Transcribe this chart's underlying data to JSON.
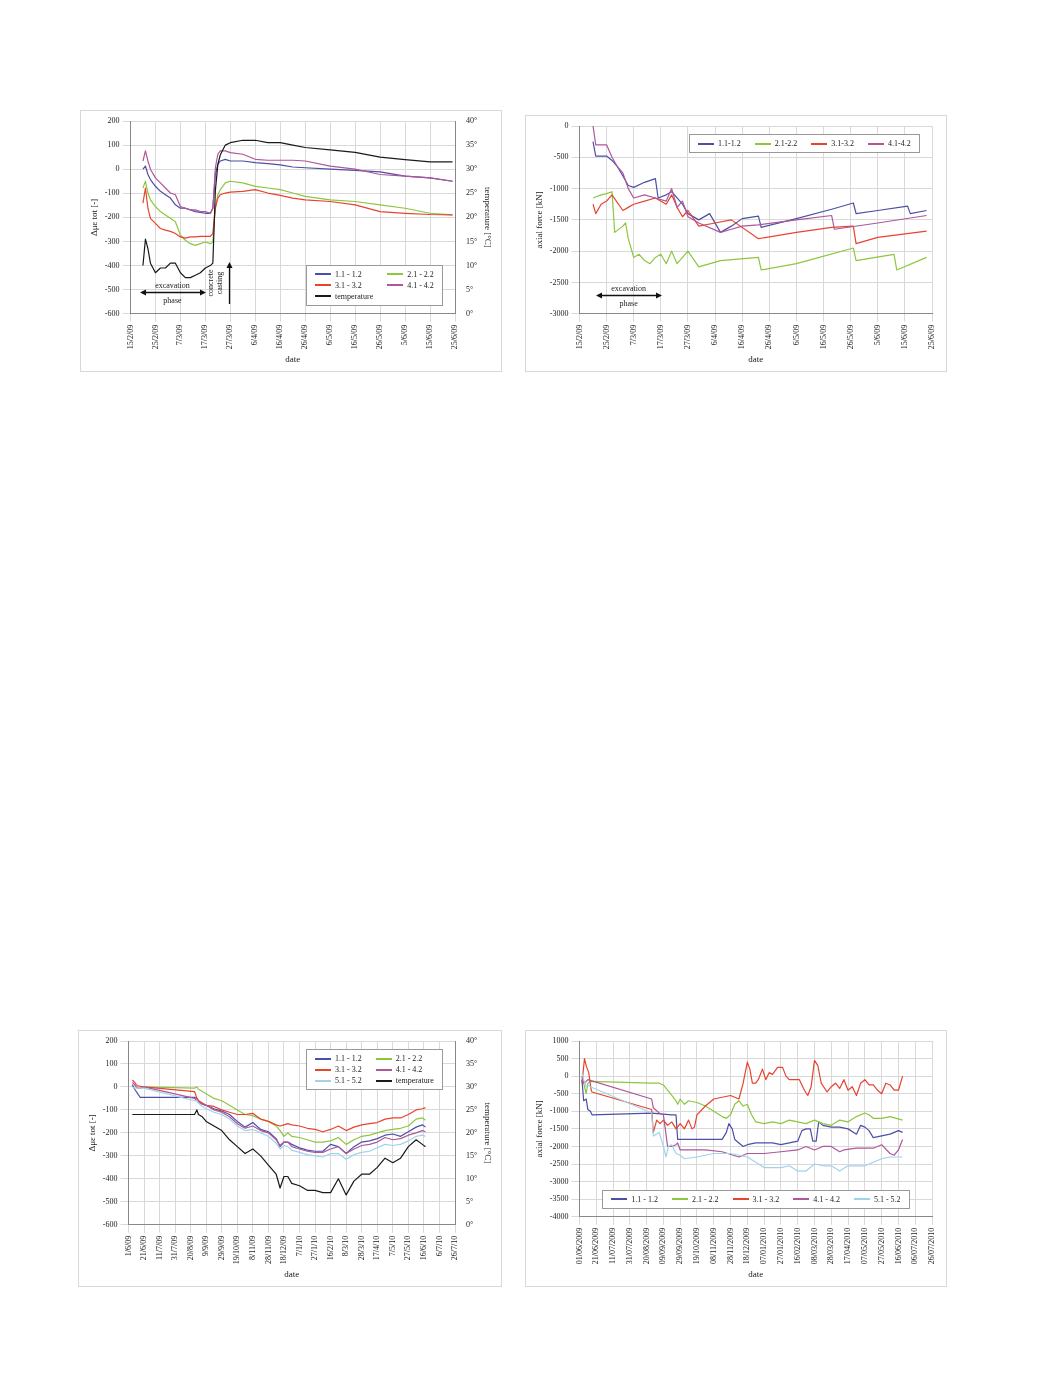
{
  "chart_data": [
    {
      "type": "line",
      "xlabel": "date",
      "ylabel": "Δμε tot [-]",
      "y2label": "temperature [°C]",
      "grid": true,
      "legend": "bottom right",
      "x": [
        "2009-02-20",
        "2009-02-21",
        "2009-02-22",
        "2009-02-23",
        "2009-02-25",
        "2009-02-27",
        "2009-03-01",
        "2009-03-03",
        "2009-03-05",
        "2009-03-07",
        "2009-03-09",
        "2009-03-11",
        "2009-03-13",
        "2009-03-15",
        "2009-03-17",
        "2009-03-19",
        "2009-03-20",
        "2009-03-21",
        "2009-03-22",
        "2009-03-23",
        "2009-03-25",
        "2009-03-27",
        "2009-04-01",
        "2009-04-06",
        "2009-04-11",
        "2009-04-16",
        "2009-04-21",
        "2009-04-26",
        "2009-05-06",
        "2009-05-16",
        "2009-05-26",
        "2009-06-05",
        "2009-06-15",
        "2009-06-24"
      ],
      "xlim": [
        "2009-02-15",
        "2009-06-25"
      ],
      "xticks": [
        {
          "value": "2009-02-15",
          "label": "15/2/09"
        },
        {
          "value": "2009-02-25",
          "label": "25/2/09"
        },
        {
          "value": "2009-03-07",
          "label": "7/3/09"
        },
        {
          "value": "2009-03-17",
          "label": "17/3/09"
        },
        {
          "value": "2009-03-27",
          "label": "27/3/09"
        },
        {
          "value": "2009-04-06",
          "label": "6/4/09"
        },
        {
          "value": "2009-04-16",
          "label": "16/4/09"
        },
        {
          "value": "2009-04-26",
          "label": "26/4/09"
        },
        {
          "value": "2009-05-06",
          "label": "6/5/09"
        },
        {
          "value": "2009-05-16",
          "label": "16/5/09"
        },
        {
          "value": "2009-05-26",
          "label": "26/5/09"
        },
        {
          "value": "2009-06-05",
          "label": "5/6/09"
        },
        {
          "value": "2009-06-15",
          "label": "15/6/09"
        },
        {
          "value": "2009-06-25",
          "label": "25/6/09"
        }
      ],
      "ylim": [
        -600,
        200
      ],
      "yticks": [
        -600,
        -500,
        -400,
        -300,
        -200,
        -100,
        0,
        100,
        200
      ],
      "y2lim": [
        0,
        40
      ],
      "y2ticks": [
        {
          "value": 0,
          "label": "0°"
        },
        {
          "value": 5,
          "label": "5°"
        },
        {
          "value": 10,
          "label": "10°"
        },
        {
          "value": 15,
          "label": "15°"
        },
        {
          "value": 20,
          "label": "20°"
        },
        {
          "value": 25,
          "label": "25°"
        },
        {
          "value": 30,
          "label": "30°"
        },
        {
          "value": 35,
          "label": "35°"
        },
        {
          "value": 40,
          "label": "40°"
        }
      ],
      "series": [
        {
          "name": "1.1 - 1.2",
          "color": "#4b4fa6",
          "values": [
            0,
            13,
            -22,
            -43,
            -71,
            -92,
            -106,
            -120,
            -148,
            -162,
            -162,
            -169,
            -176,
            -179,
            -183,
            -183,
            -162,
            -22,
            20,
            34,
            41,
            34,
            34,
            27,
            23,
            18,
            9,
            6,
            0,
            -5,
            -11,
            -29,
            -36,
            -50
          ]
        },
        {
          "name": "2.1 - 2.2",
          "color": "#8dc63f",
          "values": [
            -78,
            -50,
            -99,
            -127,
            -155,
            -176,
            -190,
            -204,
            -218,
            -274,
            -295,
            -309,
            -316,
            -309,
            -302,
            -309,
            -302,
            -162,
            -106,
            -85,
            -57,
            -50,
            -57,
            -71,
            -78,
            -85,
            -99,
            -113,
            -127,
            -134,
            -148,
            -162,
            -183,
            -190
          ]
        },
        {
          "name": "3.1 - 3.2",
          "color": "#e8432e",
          "values": [
            -141,
            -78,
            -162,
            -204,
            -225,
            -246,
            -253,
            -258,
            -267,
            -281,
            -286,
            -281,
            -281,
            -279,
            -279,
            -279,
            -267,
            -162,
            -120,
            -106,
            -99,
            -95,
            -92,
            -85,
            -99,
            -109,
            -120,
            -127,
            -134,
            -148,
            -176,
            -183,
            -188,
            -190
          ]
        },
        {
          "name": "4.1 - 4.2",
          "color": "#b0569a",
          "values": [
            34,
            76,
            34,
            0,
            -36,
            -57,
            -78,
            -99,
            -106,
            -155,
            -162,
            -169,
            -169,
            -176,
            -176,
            -183,
            -162,
            6,
            62,
            76,
            76,
            69,
            62,
            41,
            37,
            37,
            37,
            34,
            13,
            0,
            -22,
            -29,
            -36,
            -50
          ]
        },
        {
          "name": "temperature",
          "color": "#1a1a1a",
          "axis": "y2",
          "values": [
            10,
            15.5,
            13.5,
            10.5,
            8.5,
            9.5,
            9.5,
            10.5,
            10.5,
            8.5,
            7.5,
            7.5,
            8,
            8.5,
            9.5,
            10,
            10.5,
            25.5,
            31,
            33,
            35,
            35.5,
            36,
            36,
            35.5,
            35.5,
            35,
            34.5,
            34,
            33.5,
            32.5,
            32,
            31.5,
            31.5
          ]
        }
      ],
      "annotations": [
        "excavation phase",
        "concrete casting"
      ]
    },
    {
      "type": "line",
      "xlabel": "date",
      "ylabel": "axial force [kN]",
      "grid": true,
      "legend": "top right",
      "xlim": [
        "2009-02-15",
        "2009-06-25"
      ],
      "xticks": [
        {
          "value": "2009-02-15",
          "label": "15/2/09"
        },
        {
          "value": "2009-02-25",
          "label": "25/2/09"
        },
        {
          "value": "2009-03-07",
          "label": "7/3/09"
        },
        {
          "value": "2009-03-17",
          "label": "17/3/09"
        },
        {
          "value": "2009-03-27",
          "label": "27/3/09"
        },
        {
          "value": "2009-04-06",
          "label": "6/4/09"
        },
        {
          "value": "2009-04-16",
          "label": "16/4/09"
        },
        {
          "value": "2009-04-26",
          "label": "26/4/09"
        },
        {
          "value": "2009-05-06",
          "label": "6/5/09"
        },
        {
          "value": "2009-05-16",
          "label": "16/5/09"
        },
        {
          "value": "2009-05-26",
          "label": "26/5/09"
        },
        {
          "value": "2009-06-05",
          "label": "5/6/09"
        },
        {
          "value": "2009-06-15",
          "label": "15/6/09"
        },
        {
          "value": "2009-06-25",
          "label": "25/6/09"
        }
      ],
      "ylim": [
        -3000,
        0
      ],
      "yticks": [
        -3000,
        -2500,
        -2000,
        -1500,
        -1000,
        -500,
        0
      ],
      "series": [
        {
          "name": "1.1-1.2",
          "color": "#4b4fa6",
          "x": [
            "2009-02-20",
            "2009-02-21",
            "2009-02-25",
            "2009-02-27",
            "2009-03-01",
            "2009-03-03",
            "2009-03-05",
            "2009-03-07",
            "2009-03-11",
            "2009-03-15",
            "2009-03-16",
            "2009-03-19",
            "2009-03-21",
            "2009-03-23",
            "2009-03-25",
            "2009-03-27",
            "2009-03-31",
            "2009-04-04",
            "2009-04-08",
            "2009-04-12",
            "2009-04-16",
            "2009-04-22",
            "2009-04-23",
            "2009-05-06",
            "2009-05-19",
            "2009-05-27",
            "2009-05-28",
            "2009-06-05",
            "2009-06-16",
            "2009-06-17",
            "2009-06-23"
          ],
          "values": [
            -250,
            -480,
            -480,
            -550,
            -650,
            -800,
            -950,
            -980,
            -900,
            -840,
            -1150,
            -1100,
            -1050,
            -1150,
            -1250,
            -1400,
            -1500,
            -1400,
            -1700,
            -1600,
            -1480,
            -1440,
            -1620,
            -1480,
            -1330,
            -1230,
            -1400,
            -1350,
            -1280,
            -1400,
            -1350
          ]
        },
        {
          "name": "2.1-2.2",
          "color": "#8dc63f",
          "x": [
            "2009-02-20",
            "2009-02-23",
            "2009-02-25",
            "2009-02-27",
            "2009-02-28",
            "2009-03-03",
            "2009-03-04",
            "2009-03-05",
            "2009-03-07",
            "2009-03-09",
            "2009-03-11",
            "2009-03-13",
            "2009-03-15",
            "2009-03-17",
            "2009-03-19",
            "2009-03-21",
            "2009-03-23",
            "2009-03-27",
            "2009-03-31",
            "2009-04-08",
            "2009-04-22",
            "2009-04-23",
            "2009-05-06",
            "2009-05-27",
            "2009-05-28",
            "2009-06-11",
            "2009-06-12",
            "2009-06-23"
          ],
          "values": [
            -1150,
            -1100,
            -1080,
            -1050,
            -1700,
            -1600,
            -1550,
            -1800,
            -2100,
            -2050,
            -2150,
            -2200,
            -2100,
            -2050,
            -2200,
            -2000,
            -2200,
            -2000,
            -2250,
            -2150,
            -2100,
            -2300,
            -2200,
            -1950,
            -2150,
            -2050,
            -2300,
            -2100
          ]
        },
        {
          "name": "3.1-3.2",
          "color": "#e8432e",
          "x": [
            "2009-02-20",
            "2009-02-21",
            "2009-02-23",
            "2009-02-25",
            "2009-02-27",
            "2009-03-03",
            "2009-03-05",
            "2009-03-07",
            "2009-03-11",
            "2009-03-15",
            "2009-03-19",
            "2009-03-21",
            "2009-03-23",
            "2009-03-25",
            "2009-03-27",
            "2009-03-31",
            "2009-04-06",
            "2009-04-12",
            "2009-04-22",
            "2009-05-06",
            "2009-05-19",
            "2009-05-27",
            "2009-05-28",
            "2009-06-05",
            "2009-06-23"
          ],
          "values": [
            -1250,
            -1400,
            -1250,
            -1200,
            -1100,
            -1350,
            -1300,
            -1250,
            -1200,
            -1150,
            -1250,
            -1100,
            -1300,
            -1450,
            -1350,
            -1600,
            -1550,
            -1500,
            -1800,
            -1700,
            -1620,
            -1600,
            -1880,
            -1780,
            -1680
          ]
        },
        {
          "name": "4.1-4.2",
          "color": "#b0569a",
          "x": [
            "2009-02-20",
            "2009-02-21",
            "2009-02-25",
            "2009-02-27",
            "2009-03-01",
            "2009-03-03",
            "2009-03-05",
            "2009-03-07",
            "2009-03-11",
            "2009-03-15",
            "2009-03-19",
            "2009-03-21",
            "2009-03-23",
            "2009-03-25",
            "2009-03-27",
            "2009-03-31",
            "2009-04-08",
            "2009-04-12",
            "2009-04-16",
            "2009-04-22",
            "2009-05-06",
            "2009-05-19",
            "2009-05-20",
            "2009-06-05",
            "2009-06-23"
          ],
          "values": [
            0,
            -300,
            -300,
            -500,
            -650,
            -750,
            -1000,
            -1150,
            -1100,
            -1150,
            -1200,
            -1000,
            -1300,
            -1200,
            -1450,
            -1550,
            -1700,
            -1650,
            -1600,
            -1580,
            -1500,
            -1430,
            -1650,
            -1550,
            -1430
          ]
        }
      ],
      "annotations": [
        "excavation phase"
      ]
    },
    {
      "type": "line",
      "xlabel": "date",
      "ylabel": "Δμε tot [-]",
      "y2label": "temperature [°C]",
      "grid": true,
      "legend": "top right",
      "x": [
        "2009-06-06",
        "2009-06-09",
        "2009-06-11",
        "2009-06-13",
        "2009-06-16",
        "2009-06-21",
        "2009-08-25",
        "2009-08-28",
        "2009-08-30",
        "2009-09-04",
        "2009-09-09",
        "2009-09-19",
        "2009-09-29",
        "2009-10-09",
        "2009-10-19",
        "2009-10-29",
        "2009-11-08",
        "2009-11-18",
        "2009-11-28",
        "2009-12-08",
        "2009-12-13",
        "2009-12-18",
        "2009-12-23",
        "2009-12-28",
        "2010-01-07",
        "2010-01-17",
        "2010-01-27",
        "2010-02-06",
        "2010-02-16",
        "2010-02-26",
        "2010-03-08",
        "2010-03-18",
        "2010-03-28",
        "2010-04-07",
        "2010-04-17",
        "2010-04-27",
        "2010-05-07",
        "2010-05-17",
        "2010-05-27",
        "2010-06-06",
        "2010-06-14",
        "2010-06-18"
      ],
      "xlim": [
        "2009-06-01",
        "2010-07-26"
      ],
      "xticks": [
        {
          "value": "2009-06-01",
          "label": "1/6/09"
        },
        {
          "value": "2009-06-21",
          "label": "21/6/09"
        },
        {
          "value": "2009-07-11",
          "label": "11/7/09"
        },
        {
          "value": "2009-07-31",
          "label": "31/7/09"
        },
        {
          "value": "2009-08-20",
          "label": "20/8/09"
        },
        {
          "value": "2009-09-09",
          "label": "9/9/09"
        },
        {
          "value": "2009-09-29",
          "label": "29/9/09"
        },
        {
          "value": "2009-10-19",
          "label": "19/10/09"
        },
        {
          "value": "2009-11-08",
          "label": "8/11/09"
        },
        {
          "value": "2009-11-28",
          "label": "28/11/09"
        },
        {
          "value": "2009-12-18",
          "label": "18/12/09"
        },
        {
          "value": "2010-01-07",
          "label": "7/1/10"
        },
        {
          "value": "2010-01-27",
          "label": "27/1/10"
        },
        {
          "value": "2010-02-16",
          "label": "16/2/10"
        },
        {
          "value": "2010-03-08",
          "label": "8/3/10"
        },
        {
          "value": "2010-03-28",
          "label": "28/3/10"
        },
        {
          "value": "2010-04-17",
          "label": "17/4/10"
        },
        {
          "value": "2010-05-07",
          "label": "7/5/10"
        },
        {
          "value": "2010-05-27",
          "label": "27/5/10"
        },
        {
          "value": "2010-06-16",
          "label": "16/6/10"
        },
        {
          "value": "2010-07-06",
          "label": "6/7/10"
        },
        {
          "value": "2010-07-26",
          "label": "26/7/10"
        }
      ],
      "ylim": [
        -600,
        200
      ],
      "yticks": [
        -600,
        -500,
        -400,
        -300,
        -200,
        -100,
        0,
        100,
        200
      ],
      "y2lim": [
        0,
        40
      ],
      "y2ticks": [
        {
          "value": 0,
          "label": "0°"
        },
        {
          "value": 5,
          "label": "5°"
        },
        {
          "value": 10,
          "label": "10°"
        },
        {
          "value": 15,
          "label": "15°"
        },
        {
          "value": 20,
          "label": "20°"
        },
        {
          "value": 25,
          "label": "25°"
        },
        {
          "value": 30,
          "label": "30°"
        },
        {
          "value": 35,
          "label": "35°"
        },
        {
          "value": 40,
          "label": "40°"
        }
      ],
      "series": [
        {
          "name": "1.1 - 1.2",
          "color": "#4b4fa6",
          "values": [
            10,
            -10,
            -20,
            -30,
            -45,
            -45,
            -45,
            -50,
            -60,
            -75,
            -80,
            -95,
            -105,
            -120,
            -150,
            -175,
            -155,
            -185,
            -195,
            -225,
            -260,
            -240,
            -240,
            -250,
            -265,
            -275,
            -280,
            -280,
            -250,
            -260,
            -290,
            -260,
            -240,
            -235,
            -225,
            -210,
            -205,
            -215,
            -195,
            -175,
            -165,
            -175
          ]
        },
        {
          "name": "2.1 - 2.2",
          "color": "#8dc63f",
          "values": [
            null,
            null,
            null,
            null,
            2,
            0,
            -5,
            0,
            -10,
            -20,
            -30,
            -50,
            -60,
            -80,
            -100,
            -120,
            -125,
            -140,
            -150,
            -170,
            -190,
            -215,
            -200,
            -215,
            -220,
            -230,
            -240,
            -240,
            -235,
            -220,
            -250,
            -230,
            -215,
            -210,
            -200,
            -190,
            -185,
            -180,
            -170,
            -140,
            -135,
            -145
          ]
        },
        {
          "name": "3.1 - 3.2",
          "color": "#e8432e",
          "values": [
            30,
            20,
            10,
            5,
            3,
            0,
            -20,
            -50,
            -60,
            -70,
            -80,
            -85,
            -100,
            -110,
            -120,
            -120,
            -115,
            -140,
            -150,
            -165,
            -170,
            -165,
            -160,
            -165,
            -170,
            -180,
            -185,
            -195,
            -185,
            -170,
            -190,
            -175,
            -165,
            -160,
            -155,
            -140,
            -135,
            -135,
            -120,
            -100,
            -95,
            -90
          ]
        },
        {
          "name": "4.1 - 4.2",
          "color": "#b0569a",
          "values": [
            20,
            10,
            0,
            -5,
            -5,
            0,
            -50,
            -60,
            -65,
            -75,
            -80,
            -100,
            -110,
            -130,
            -160,
            -180,
            -170,
            -190,
            -200,
            -230,
            -255,
            -240,
            -240,
            -260,
            -270,
            -280,
            -285,
            -285,
            -270,
            -260,
            -290,
            -270,
            -255,
            -250,
            -240,
            -220,
            -230,
            -225,
            -210,
            -200,
            -190,
            -195
          ]
        },
        {
          "name": "5.1 - 5.2",
          "color": "#9fd3ec",
          "values": [
            0,
            -5,
            -5,
            -5,
            -5,
            -5,
            -60,
            -60,
            -70,
            -85,
            -95,
            -110,
            -120,
            -140,
            -170,
            -190,
            -185,
            -200,
            -215,
            -245,
            -270,
            -255,
            -260,
            -275,
            -285,
            -295,
            -300,
            -305,
            -290,
            -290,
            -315,
            -295,
            -285,
            -280,
            -265,
            -250,
            -255,
            -250,
            -235,
            -215,
            -210,
            -215
          ]
        },
        {
          "name": "temperature",
          "color": "#1a1a1a",
          "axis": "y2",
          "values": [
            24,
            24,
            24,
            24,
            24,
            24,
            24,
            25,
            24,
            23.5,
            22.5,
            21.5,
            20.5,
            18.5,
            17,
            15.5,
            16.5,
            15,
            13,
            11,
            8,
            10.5,
            10.5,
            9,
            8.5,
            7.5,
            7.5,
            7,
            7,
            10,
            6.5,
            9.5,
            11,
            11,
            12.5,
            14.5,
            13.5,
            14.5,
            17,
            18.5,
            17.5,
            17
          ]
        }
      ]
    },
    {
      "type": "line",
      "xlabel": "date",
      "ylabel": "axial force [kN]",
      "grid": true,
      "legend": "bottom",
      "xlim": [
        "2009-06-01",
        "2010-07-26"
      ],
      "xticks": [
        {
          "value": "2009-06-01",
          "label": "01/06/2009"
        },
        {
          "value": "2009-06-21",
          "label": "21/06/2009"
        },
        {
          "value": "2009-07-11",
          "label": "11/07/2009"
        },
        {
          "value": "2009-07-31",
          "label": "31/07/2009"
        },
        {
          "value": "2009-08-20",
          "label": "20/08/2009"
        },
        {
          "value": "2009-09-09",
          "label": "09/09/2009"
        },
        {
          "value": "2009-09-29",
          "label": "29/09/2009"
        },
        {
          "value": "2009-10-19",
          "label": "19/10/2009"
        },
        {
          "value": "2009-11-08",
          "label": "08/11/2009"
        },
        {
          "value": "2009-11-28",
          "label": "28/11/2009"
        },
        {
          "value": "2009-12-18",
          "label": "18/12/2009"
        },
        {
          "value": "2010-01-07",
          "label": "07/01/2010"
        },
        {
          "value": "2010-01-27",
          "label": "27/01/2010"
        },
        {
          "value": "2010-02-16",
          "label": "16/02/2010"
        },
        {
          "value": "2010-03-08",
          "label": "08/03/2010"
        },
        {
          "value": "2010-03-28",
          "label": "28/03/2010"
        },
        {
          "value": "2010-04-17",
          "label": "17/04/2010"
        },
        {
          "value": "2010-05-07",
          "label": "07/05/2010"
        },
        {
          "value": "2010-05-27",
          "label": "27/05/2010"
        },
        {
          "value": "2010-06-16",
          "label": "16/06/2010"
        },
        {
          "value": "2010-07-06",
          "label": "06/07/2010"
        },
        {
          "value": "2010-07-26",
          "label": "26/07/2010"
        }
      ],
      "ylim": [
        -4000,
        1000
      ],
      "yticks": [
        -4000,
        -3500,
        -3000,
        -2500,
        -2000,
        -1500,
        -1000,
        -500,
        0,
        500,
        1000
      ],
      "series": [
        {
          "name": "1.1 - 1.2",
          "color": "#4b4fa6",
          "x": [
            "2009-06-04",
            "2009-06-06",
            "2009-06-09",
            "2009-06-11",
            "2009-06-14",
            "2009-06-16",
            "2009-08-26",
            "2009-09-19",
            "2009-09-24",
            "2009-09-26",
            "2009-10-09",
            "2009-10-29",
            "2009-11-18",
            "2009-11-23",
            "2009-11-26",
            "2009-11-30",
            "2009-12-03",
            "2009-12-08",
            "2009-12-13",
            "2009-12-18",
            "2009-12-28",
            "2010-01-07",
            "2010-01-17",
            "2010-01-27",
            "2010-02-06",
            "2010-02-16",
            "2010-02-21",
            "2010-02-26",
            "2010-03-03",
            "2010-03-06",
            "2010-03-10",
            "2010-03-13",
            "2010-03-18",
            "2010-03-28",
            "2010-04-07",
            "2010-04-17",
            "2010-04-27",
            "2010-05-02",
            "2010-05-07",
            "2010-05-12",
            "2010-05-17",
            "2010-05-27",
            "2010-06-06",
            "2010-06-16",
            "2010-06-21"
          ],
          "values": [
            -100,
            -700,
            -650,
            -950,
            -1000,
            -1100,
            -1050,
            -1100,
            -1100,
            -1800,
            -1800,
            -1800,
            -1800,
            -1600,
            -1350,
            -1500,
            -1800,
            -1900,
            -2000,
            -1950,
            -1900,
            -1900,
            -1900,
            -1950,
            -1900,
            -1850,
            -1550,
            -1500,
            -1500,
            -1850,
            -1850,
            -1300,
            -1400,
            -1450,
            -1450,
            -1500,
            -1650,
            -1400,
            -1450,
            -1550,
            -1750,
            -1700,
            -1650,
            -1550,
            -1600
          ]
        },
        {
          "name": "2.1 - 2.2",
          "color": "#8dc63f",
          "x": [
            "2009-06-04",
            "2009-06-06",
            "2009-06-09",
            "2009-06-11",
            "2009-06-14",
            "2009-08-26",
            "2009-09-04",
            "2009-09-09",
            "2009-09-14",
            "2009-09-19",
            "2009-09-24",
            "2009-09-26",
            "2009-09-29",
            "2009-10-04",
            "2009-10-09",
            "2009-10-19",
            "2009-10-29",
            "2009-11-08",
            "2009-11-18",
            "2009-11-23",
            "2009-11-28",
            "2009-12-03",
            "2009-12-08",
            "2009-12-13",
            "2009-12-18",
            "2009-12-23",
            "2009-12-28",
            "2010-01-07",
            "2010-01-17",
            "2010-01-27",
            "2010-02-06",
            "2010-02-16",
            "2010-02-26",
            "2010-03-08",
            "2010-03-18",
            "2010-03-28",
            "2010-04-07",
            "2010-04-17",
            "2010-04-27",
            "2010-05-07",
            "2010-05-12",
            "2010-05-17",
            "2010-05-27",
            "2010-06-06",
            "2010-06-21"
          ],
          "values": [
            0,
            -200,
            -500,
            -200,
            -150,
            -200,
            -200,
            -250,
            -400,
            -550,
            -700,
            -800,
            -650,
            -800,
            -700,
            -750,
            -850,
            -1000,
            -1150,
            -1200,
            -1100,
            -800,
            -700,
            -850,
            -800,
            -1100,
            -1300,
            -1350,
            -1300,
            -1350,
            -1250,
            -1300,
            -1350,
            -1250,
            -1350,
            -1400,
            -1250,
            -1300,
            -1150,
            -1050,
            -1100,
            -1200,
            -1200,
            -1150,
            -1250
          ]
        },
        {
          "name": "3.1 - 3.2",
          "color": "#e8432e",
          "x": [
            "2009-06-04",
            "2009-06-07",
            "2009-06-09",
            "2009-06-12",
            "2009-06-15",
            "2009-06-16",
            "2009-08-26",
            "2009-08-28",
            "2009-09-01",
            "2009-09-05",
            "2009-09-09",
            "2009-09-14",
            "2009-09-19",
            "2009-09-24",
            "2009-09-29",
            "2009-10-04",
            "2009-10-09",
            "2009-10-13",
            "2009-10-16",
            "2009-10-19",
            "2009-10-29",
            "2009-11-08",
            "2009-11-18",
            "2009-11-28",
            "2009-12-03",
            "2009-12-08",
            "2009-12-13",
            "2009-12-18",
            "2009-12-21",
            "2009-12-24",
            "2009-12-28",
            "2009-12-31",
            "2010-01-05",
            "2010-01-09",
            "2010-01-13",
            "2010-01-17",
            "2010-01-23",
            "2010-01-29",
            "2010-02-02",
            "2010-02-06",
            "2010-02-11",
            "2010-02-18",
            "2010-02-24",
            "2010-02-28",
            "2010-03-04",
            "2010-03-08",
            "2010-03-12",
            "2010-03-16",
            "2010-03-23",
            "2010-03-28",
            "2010-04-02",
            "2010-04-07",
            "2010-04-12",
            "2010-04-17",
            "2010-04-22",
            "2010-04-27",
            "2010-05-02",
            "2010-05-07",
            "2010-05-12",
            "2010-05-17",
            "2010-05-22",
            "2010-05-27",
            "2010-06-01",
            "2010-06-06",
            "2010-06-11",
            "2010-06-16",
            "2010-06-21"
          ],
          "values": [
            -200,
            500,
            300,
            100,
            -400,
            -450,
            -950,
            -1600,
            -1250,
            -1350,
            -1250,
            -1400,
            -1300,
            -1500,
            -1350,
            -1500,
            -1250,
            -1500,
            -1450,
            -1100,
            -850,
            -650,
            -600,
            -550,
            -600,
            -650,
            -200,
            400,
            200,
            -200,
            -200,
            -100,
            200,
            -100,
            100,
            50,
            250,
            250,
            0,
            -100,
            -100,
            -100,
            -400,
            -550,
            -300,
            450,
            300,
            -200,
            -450,
            -300,
            -200,
            -350,
            -100,
            -400,
            -300,
            -550,
            -200,
            -100,
            -250,
            -250,
            -400,
            -500,
            -200,
            -250,
            -400,
            -400,
            0
          ]
        },
        {
          "name": "4.1 - 4.2",
          "color": "#b0569a",
          "x": [
            "2009-06-04",
            "2009-06-06",
            "2009-06-09",
            "2009-06-11",
            "2009-08-26",
            "2009-08-28",
            "2009-09-04",
            "2009-09-09",
            "2009-09-14",
            "2009-09-19",
            "2009-09-24",
            "2009-09-26",
            "2009-09-29",
            "2009-10-29",
            "2009-11-18",
            "2009-12-08",
            "2009-12-18",
            "2010-01-07",
            "2010-01-27",
            "2010-02-16",
            "2010-02-26",
            "2010-03-08",
            "2010-03-18",
            "2010-03-28",
            "2010-04-07",
            "2010-04-12",
            "2010-04-27",
            "2010-05-17",
            "2010-05-27",
            "2010-06-06",
            "2010-06-11",
            "2010-06-16",
            "2010-06-21"
          ],
          "values": [
            0,
            -200,
            -150,
            -100,
            -650,
            -900,
            -1050,
            -1100,
            -2000,
            -2000,
            -1950,
            -1900,
            -2100,
            -2100,
            -2150,
            -2300,
            -2200,
            -2200,
            -2150,
            -2100,
            -2000,
            -2100,
            -2000,
            -2000,
            -2150,
            -2100,
            -2050,
            -2050,
            -1950,
            -2200,
            -2250,
            -2100,
            -1800
          ]
        },
        {
          "name": "5.1 - 5.2",
          "color": "#9fd3ec",
          "x": [
            "2009-06-04",
            "2009-06-06",
            "2009-06-09",
            "2009-06-11",
            "2009-06-14",
            "2009-08-26",
            "2009-08-28",
            "2009-09-04",
            "2009-09-09",
            "2009-09-12",
            "2009-09-15",
            "2009-09-19",
            "2009-09-24",
            "2009-09-29",
            "2009-10-04",
            "2009-10-19",
            "2009-11-08",
            "2009-11-28",
            "2009-12-18",
            "2010-01-07",
            "2010-01-27",
            "2010-02-06",
            "2010-02-16",
            "2010-02-26",
            "2010-03-08",
            "2010-03-18",
            "2010-03-28",
            "2010-04-07",
            "2010-04-17",
            "2010-05-07",
            "2010-05-27",
            "2010-06-06",
            "2010-06-21"
          ],
          "values": [
            100,
            -100,
            -300,
            -250,
            -300,
            -1050,
            -1700,
            -1600,
            -2000,
            -2300,
            -2000,
            -1950,
            -2200,
            -2250,
            -2350,
            -2300,
            -2200,
            -2200,
            -2300,
            -2600,
            -2600,
            -2550,
            -2700,
            -2700,
            -2500,
            -2550,
            -2550,
            -2700,
            -2550,
            -2550,
            -2350,
            -2300,
            -2300
          ]
        }
      ]
    }
  ]
}
